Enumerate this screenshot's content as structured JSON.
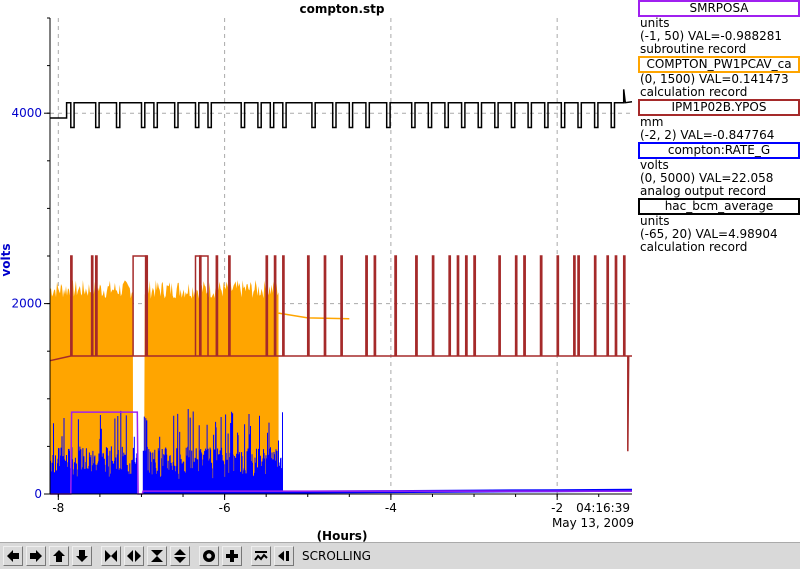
{
  "chart_data": {
    "type": "line",
    "title": "compton.stp",
    "ylabel": "volts",
    "xlabel": "(Hours)",
    "xlim": [
      -8.1,
      -1.1
    ],
    "ylim": [
      0,
      5000
    ],
    "x_ticks": [
      "-8",
      "-6",
      "-4",
      "-2"
    ],
    "y_ticks": [
      "0",
      "2000",
      "4000"
    ],
    "grid": true,
    "legend_position": "right",
    "time_stamp": "04:16:39",
    "date_stamp": "May 13, 2009",
    "colors": {
      "y_axis_labels": "#0000cc",
      "grid": "#aaaaaa"
    },
    "series": [
      {
        "name": "SMRPOSA",
        "color": "#a020f0",
        "x": [
          -8.1,
          -7.85,
          -7.84,
          -7.05,
          -7.04,
          -6.99,
          -6.98,
          -5.3,
          -1.1
        ],
        "y": [
          0,
          0,
          860,
          860,
          0,
          0,
          30,
          30,
          30
        ]
      },
      {
        "name": "COMPTON_PW1PCAV_ca",
        "color": "#ffa500",
        "x": [
          -8.1,
          -7.8,
          -7.1,
          -6.95,
          -6.3,
          -5.35,
          -5.0,
          -4.5
        ],
        "y": [
          2150,
          2100,
          2180,
          2150,
          2150,
          1900,
          1850,
          1840
        ]
      },
      {
        "name": "IPM1P02B.YPOS",
        "color": "#a52a2a",
        "x": [
          -8.1,
          -7.0,
          -6.0,
          -5.0,
          -4.0,
          -3.0,
          -2.0,
          -1.2,
          -1.15,
          -1.1
        ],
        "y": [
          1400,
          1430,
          1440,
          1450,
          1450,
          1450,
          1450,
          1450,
          450,
          1450
        ]
      },
      {
        "name": "compton:RATE_G",
        "color": "#0000ff",
        "x": [
          -8.1,
          -7.6,
          -7.1,
          -6.6,
          -6.1,
          -5.4,
          -5.3,
          -4.0,
          -3.0,
          -2.0,
          -1.1
        ],
        "y": [
          250,
          300,
          200,
          280,
          320,
          260,
          20,
          25,
          30,
          35,
          40
        ]
      },
      {
        "name": "hac_bcm_average",
        "color": "#000000",
        "x": [
          -8.1,
          -7.9,
          -7.88,
          -6.0,
          -4.0,
          -2.0,
          -1.1
        ],
        "y": [
          3950,
          3950,
          4100,
          4110,
          4120,
          4110,
          4120
        ]
      }
    ]
  },
  "legend": [
    {
      "name": "SMRPOSA",
      "units": "units",
      "range_val": "(-1, 50) VAL=-0.988281",
      "rtype": "subroutine record",
      "color": "#a020f0"
    },
    {
      "name": "COMPTON_PW1PCAV_ca",
      "units": "",
      "range_val": "(0, 1500) VAL=0.141473",
      "rtype": "calculation record",
      "color": "#ffa500"
    },
    {
      "name": "IPM1P02B.YPOS",
      "units": "mm",
      "range_val": "(-2, 2) VAL=-0.847764",
      "rtype": "",
      "color": "#a52a2a"
    },
    {
      "name": "compton:RATE_G",
      "units": "volts",
      "range_val": "(0, 5000) VAL=22.058",
      "rtype": "analog output record",
      "color": "#0000ff"
    },
    {
      "name": "hac_bcm_average",
      "units": "units",
      "range_val": "(-65, 20) VAL=4.98904",
      "rtype": "calculation record",
      "color": "#000000"
    }
  ],
  "toolbar": {
    "status": "SCROLLING",
    "icons": [
      "arrow-left-icon",
      "arrow-right-icon",
      "arrow-up-icon",
      "arrow-down-icon",
      "shrink-horizontal-icon",
      "expand-horizontal-icon",
      "shrink-vertical-icon",
      "expand-vertical-icon",
      "zoom-out-icon",
      "zoom-in-icon",
      "autoscale-icon",
      "scroll-icon"
    ]
  }
}
